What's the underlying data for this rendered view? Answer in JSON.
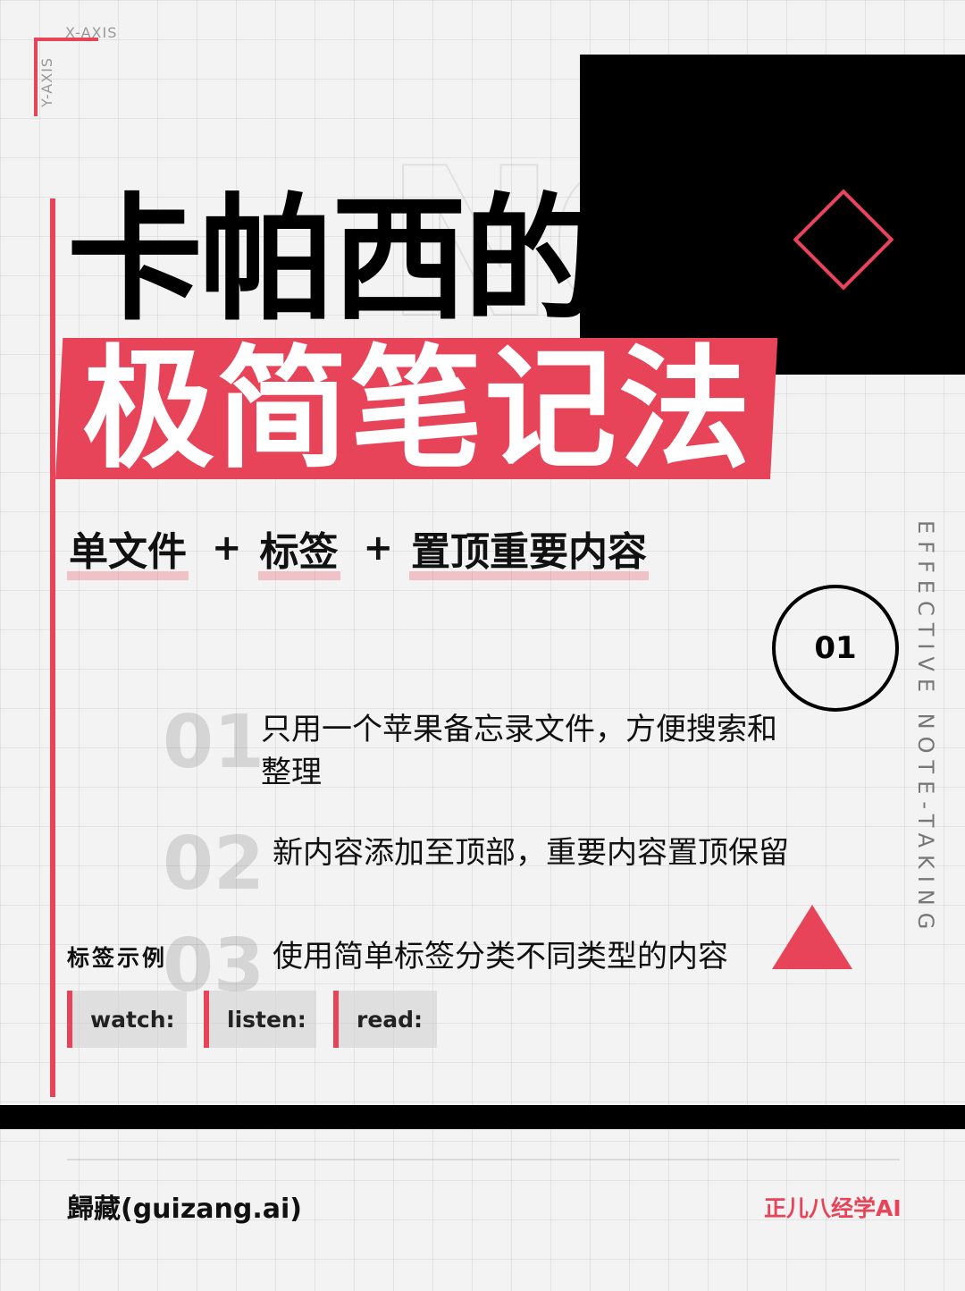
{
  "axis": {
    "x_label": "X-AXIS",
    "y_label": "Y-AXIS"
  },
  "watermark": "NO",
  "title": {
    "line1": "卡帕西的",
    "line2": "极简笔记法"
  },
  "subtitle": {
    "terms": [
      "单文件",
      "标签",
      "置顶重要内容"
    ],
    "separator": "+"
  },
  "badge": "01",
  "side_text": "EFFECTIVE NOTE-TAKING",
  "points": [
    {
      "num": "01",
      "text": "只用一个苹果备忘录文件，方便搜索和整理"
    },
    {
      "num": "02",
      "text": "新内容添加至顶部，重要内容置顶保留"
    },
    {
      "num": "03",
      "text": "使用简单标签分类不同类型的内容"
    }
  ],
  "tag_example": {
    "heading": "标签示例",
    "tags": [
      "watch:",
      "listen:",
      "read:"
    ]
  },
  "footer": {
    "left": "歸藏(guizang.ai)",
    "right": "正儿八经学AI"
  },
  "colors": {
    "accent": "#e84459",
    "dark": "#000000"
  }
}
